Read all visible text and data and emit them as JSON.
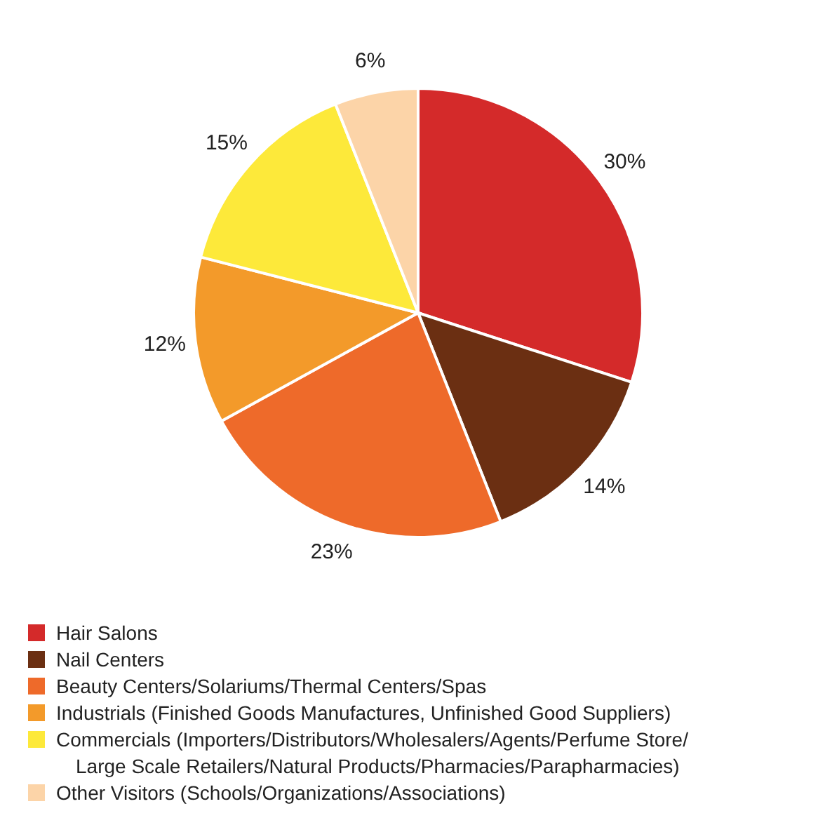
{
  "chart_data": {
    "type": "pie",
    "categories": [
      "Hair Salons",
      "Nail Centers",
      "Beauty Centers/Solariums/Thermal Centers/Spas",
      "Industrials (Finished Goods Manufactures, Unfinished Good Suppliers)",
      "Commercials (Importers/Distributors/Wholesalers/Agents/Perfume Store/ Large Scale Retailers/Natural Products/Pharmacies/Parapharmacies)",
      "Other Visitors (Schools/Organizations/Associations)"
    ],
    "values": [
      30,
      14,
      23,
      12,
      15,
      6
    ],
    "value_labels": [
      "30%",
      "14%",
      "23%",
      "12%",
      "15%",
      "6%"
    ],
    "colors": [
      "#d42a2a",
      "#6b2f12",
      "#ee6a2a",
      "#f39a2a",
      "#fde93a",
      "#fcd4a8"
    ],
    "legend": "bottom"
  }
}
